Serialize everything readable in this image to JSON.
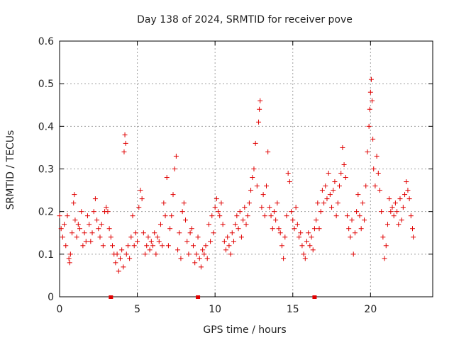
{
  "chart_data": {
    "type": "scatter",
    "title": "Day 138 of 2024, SRMTID for receiver pove",
    "xlabel": "GPS time / hours",
    "ylabel": "SRMTID / TECUs",
    "xlim": [
      0,
      24
    ],
    "ylim": [
      0,
      0.6
    ],
    "x_ticks": [
      0,
      5,
      10,
      15,
      20
    ],
    "x_tick_labels": [
      "0",
      "5",
      "10",
      "15",
      "20"
    ],
    "y_ticks": [
      0,
      0.1,
      0.2,
      0.3,
      0.4,
      0.5,
      0.6
    ],
    "y_tick_labels": [
      "0",
      "0.1",
      "0.2",
      "0.3",
      "0.4",
      "0.5",
      "0.6"
    ],
    "grid": true,
    "marker": "+",
    "color": "#e00000",
    "x_axis_markers": [
      3.3,
      8.9,
      16.4
    ],
    "series": [
      {
        "name": "SRMTID",
        "points": [
          [
            0.0,
            0.19
          ],
          [
            0.1,
            0.16
          ],
          [
            0.2,
            0.14
          ],
          [
            0.3,
            0.17
          ],
          [
            0.4,
            0.12
          ],
          [
            0.5,
            0.19
          ],
          [
            0.6,
            0.09
          ],
          [
            0.65,
            0.08
          ],
          [
            0.7,
            0.1
          ],
          [
            0.8,
            0.15
          ],
          [
            0.9,
            0.22
          ],
          [
            0.95,
            0.24
          ],
          [
            1.0,
            0.18
          ],
          [
            1.1,
            0.14
          ],
          [
            1.2,
            0.17
          ],
          [
            1.3,
            0.16
          ],
          [
            1.4,
            0.2
          ],
          [
            1.5,
            0.12
          ],
          [
            1.6,
            0.15
          ],
          [
            1.7,
            0.13
          ],
          [
            1.8,
            0.19
          ],
          [
            1.9,
            0.17
          ],
          [
            2.0,
            0.13
          ],
          [
            2.1,
            0.15
          ],
          [
            2.2,
            0.2
          ],
          [
            2.3,
            0.23
          ],
          [
            2.4,
            0.18
          ],
          [
            2.5,
            0.16
          ],
          [
            2.6,
            0.14
          ],
          [
            2.7,
            0.17
          ],
          [
            2.8,
            0.12
          ],
          [
            2.9,
            0.2
          ],
          [
            3.0,
            0.21
          ],
          [
            3.1,
            0.2
          ],
          [
            3.2,
            0.16
          ],
          [
            3.3,
            0.14
          ],
          [
            3.4,
            0.12
          ],
          [
            3.5,
            0.1
          ],
          [
            3.6,
            0.08
          ],
          [
            3.7,
            0.1
          ],
          [
            3.8,
            0.06
          ],
          [
            3.9,
            0.09
          ],
          [
            4.0,
            0.11
          ],
          [
            4.1,
            0.07
          ],
          [
            4.15,
            0.34
          ],
          [
            4.2,
            0.38
          ],
          [
            4.25,
            0.36
          ],
          [
            4.3,
            0.1
          ],
          [
            4.4,
            0.12
          ],
          [
            4.5,
            0.09
          ],
          [
            4.6,
            0.14
          ],
          [
            4.7,
            0.19
          ],
          [
            4.8,
            0.12
          ],
          [
            4.9,
            0.15
          ],
          [
            5.0,
            0.13
          ],
          [
            5.1,
            0.21
          ],
          [
            5.2,
            0.25
          ],
          [
            5.3,
            0.23
          ],
          [
            5.4,
            0.15
          ],
          [
            5.5,
            0.1
          ],
          [
            5.6,
            0.12
          ],
          [
            5.7,
            0.14
          ],
          [
            5.8,
            0.11
          ],
          [
            5.9,
            0.13
          ],
          [
            6.0,
            0.12
          ],
          [
            6.1,
            0.15
          ],
          [
            6.2,
            0.1
          ],
          [
            6.3,
            0.14
          ],
          [
            6.4,
            0.13
          ],
          [
            6.5,
            0.17
          ],
          [
            6.6,
            0.12
          ],
          [
            6.7,
            0.22
          ],
          [
            6.8,
            0.19
          ],
          [
            6.9,
            0.28
          ],
          [
            7.0,
            0.12
          ],
          [
            7.1,
            0.16
          ],
          [
            7.2,
            0.19
          ],
          [
            7.3,
            0.24
          ],
          [
            7.4,
            0.3
          ],
          [
            7.5,
            0.33
          ],
          [
            7.6,
            0.11
          ],
          [
            7.7,
            0.15
          ],
          [
            7.8,
            0.09
          ],
          [
            7.9,
            0.2
          ],
          [
            8.0,
            0.22
          ],
          [
            8.1,
            0.18
          ],
          [
            8.2,
            0.13
          ],
          [
            8.3,
            0.1
          ],
          [
            8.4,
            0.15
          ],
          [
            8.5,
            0.16
          ],
          [
            8.6,
            0.12
          ],
          [
            8.7,
            0.08
          ],
          [
            8.8,
            0.1
          ],
          [
            8.9,
            0.14
          ],
          [
            9.0,
            0.09
          ],
          [
            9.1,
            0.07
          ],
          [
            9.2,
            0.11
          ],
          [
            9.3,
            0.1
          ],
          [
            9.4,
            0.12
          ],
          [
            9.5,
            0.09
          ],
          [
            9.6,
            0.17
          ],
          [
            9.7,
            0.13
          ],
          [
            9.8,
            0.19
          ],
          [
            9.9,
            0.15
          ],
          [
            10.0,
            0.21
          ],
          [
            10.1,
            0.23
          ],
          [
            10.2,
            0.2
          ],
          [
            10.3,
            0.19
          ],
          [
            10.4,
            0.22
          ],
          [
            10.5,
            0.17
          ],
          [
            10.6,
            0.13
          ],
          [
            10.7,
            0.11
          ],
          [
            10.8,
            0.14
          ],
          [
            10.9,
            0.12
          ],
          [
            11.0,
            0.1
          ],
          [
            11.1,
            0.15
          ],
          [
            11.2,
            0.13
          ],
          [
            11.3,
            0.17
          ],
          [
            11.4,
            0.19
          ],
          [
            11.5,
            0.16
          ],
          [
            11.6,
            0.2
          ],
          [
            11.7,
            0.14
          ],
          [
            11.8,
            0.18
          ],
          [
            11.9,
            0.21
          ],
          [
            12.0,
            0.17
          ],
          [
            12.1,
            0.19
          ],
          [
            12.2,
            0.22
          ],
          [
            12.3,
            0.25
          ],
          [
            12.4,
            0.28
          ],
          [
            12.5,
            0.3
          ],
          [
            12.6,
            0.36
          ],
          [
            12.7,
            0.26
          ],
          [
            12.8,
            0.41
          ],
          [
            12.85,
            0.44
          ],
          [
            12.9,
            0.46
          ],
          [
            13.0,
            0.21
          ],
          [
            13.1,
            0.24
          ],
          [
            13.2,
            0.19
          ],
          [
            13.3,
            0.26
          ],
          [
            13.4,
            0.34
          ],
          [
            13.5,
            0.21
          ],
          [
            13.6,
            0.19
          ],
          [
            13.7,
            0.16
          ],
          [
            13.8,
            0.2
          ],
          [
            13.9,
            0.18
          ],
          [
            14.0,
            0.22
          ],
          [
            14.1,
            0.16
          ],
          [
            14.2,
            0.15
          ],
          [
            14.3,
            0.12
          ],
          [
            14.4,
            0.09
          ],
          [
            14.5,
            0.14
          ],
          [
            14.6,
            0.19
          ],
          [
            14.7,
            0.29
          ],
          [
            14.8,
            0.27
          ],
          [
            14.9,
            0.2
          ],
          [
            15.0,
            0.18
          ],
          [
            15.1,
            0.16
          ],
          [
            15.2,
            0.21
          ],
          [
            15.3,
            0.17
          ],
          [
            15.4,
            0.14
          ],
          [
            15.5,
            0.15
          ],
          [
            15.6,
            0.12
          ],
          [
            15.7,
            0.1
          ],
          [
            15.8,
            0.09
          ],
          [
            15.9,
            0.13
          ],
          [
            16.0,
            0.15
          ],
          [
            16.1,
            0.12
          ],
          [
            16.2,
            0.14
          ],
          [
            16.3,
            0.11
          ],
          [
            16.4,
            0.16
          ],
          [
            16.5,
            0.18
          ],
          [
            16.6,
            0.22
          ],
          [
            16.7,
            0.16
          ],
          [
            16.8,
            0.2
          ],
          [
            16.9,
            0.25
          ],
          [
            17.0,
            0.22
          ],
          [
            17.1,
            0.26
          ],
          [
            17.2,
            0.23
          ],
          [
            17.3,
            0.29
          ],
          [
            17.4,
            0.24
          ],
          [
            17.5,
            0.21
          ],
          [
            17.6,
            0.25
          ],
          [
            17.7,
            0.27
          ],
          [
            17.8,
            0.19
          ],
          [
            17.9,
            0.22
          ],
          [
            18.0,
            0.26
          ],
          [
            18.1,
            0.29
          ],
          [
            18.2,
            0.35
          ],
          [
            18.3,
            0.31
          ],
          [
            18.4,
            0.28
          ],
          [
            18.5,
            0.19
          ],
          [
            18.6,
            0.16
          ],
          [
            18.7,
            0.14
          ],
          [
            18.8,
            0.18
          ],
          [
            18.9,
            0.1
          ],
          [
            19.0,
            0.15
          ],
          [
            19.1,
            0.2
          ],
          [
            19.2,
            0.24
          ],
          [
            19.3,
            0.19
          ],
          [
            19.4,
            0.16
          ],
          [
            19.5,
            0.22
          ],
          [
            19.6,
            0.18
          ],
          [
            19.7,
            0.26
          ],
          [
            19.8,
            0.34
          ],
          [
            19.9,
            0.4
          ],
          [
            19.95,
            0.44
          ],
          [
            20.0,
            0.48
          ],
          [
            20.05,
            0.51
          ],
          [
            20.1,
            0.46
          ],
          [
            20.15,
            0.37
          ],
          [
            20.2,
            0.3
          ],
          [
            20.3,
            0.26
          ],
          [
            20.4,
            0.33
          ],
          [
            20.5,
            0.29
          ],
          [
            20.6,
            0.25
          ],
          [
            20.7,
            0.2
          ],
          [
            20.8,
            0.14
          ],
          [
            20.9,
            0.09
          ],
          [
            21.0,
            0.12
          ],
          [
            21.1,
            0.17
          ],
          [
            21.2,
            0.23
          ],
          [
            21.3,
            0.2
          ],
          [
            21.4,
            0.21
          ],
          [
            21.5,
            0.19
          ],
          [
            21.6,
            0.22
          ],
          [
            21.7,
            0.2
          ],
          [
            21.8,
            0.17
          ],
          [
            21.9,
            0.23
          ],
          [
            22.0,
            0.18
          ],
          [
            22.1,
            0.21
          ],
          [
            22.2,
            0.24
          ],
          [
            22.3,
            0.27
          ],
          [
            22.4,
            0.25
          ],
          [
            22.5,
            0.23
          ],
          [
            22.6,
            0.19
          ],
          [
            22.7,
            0.16
          ],
          [
            22.75,
            0.14
          ]
        ]
      }
    ]
  }
}
